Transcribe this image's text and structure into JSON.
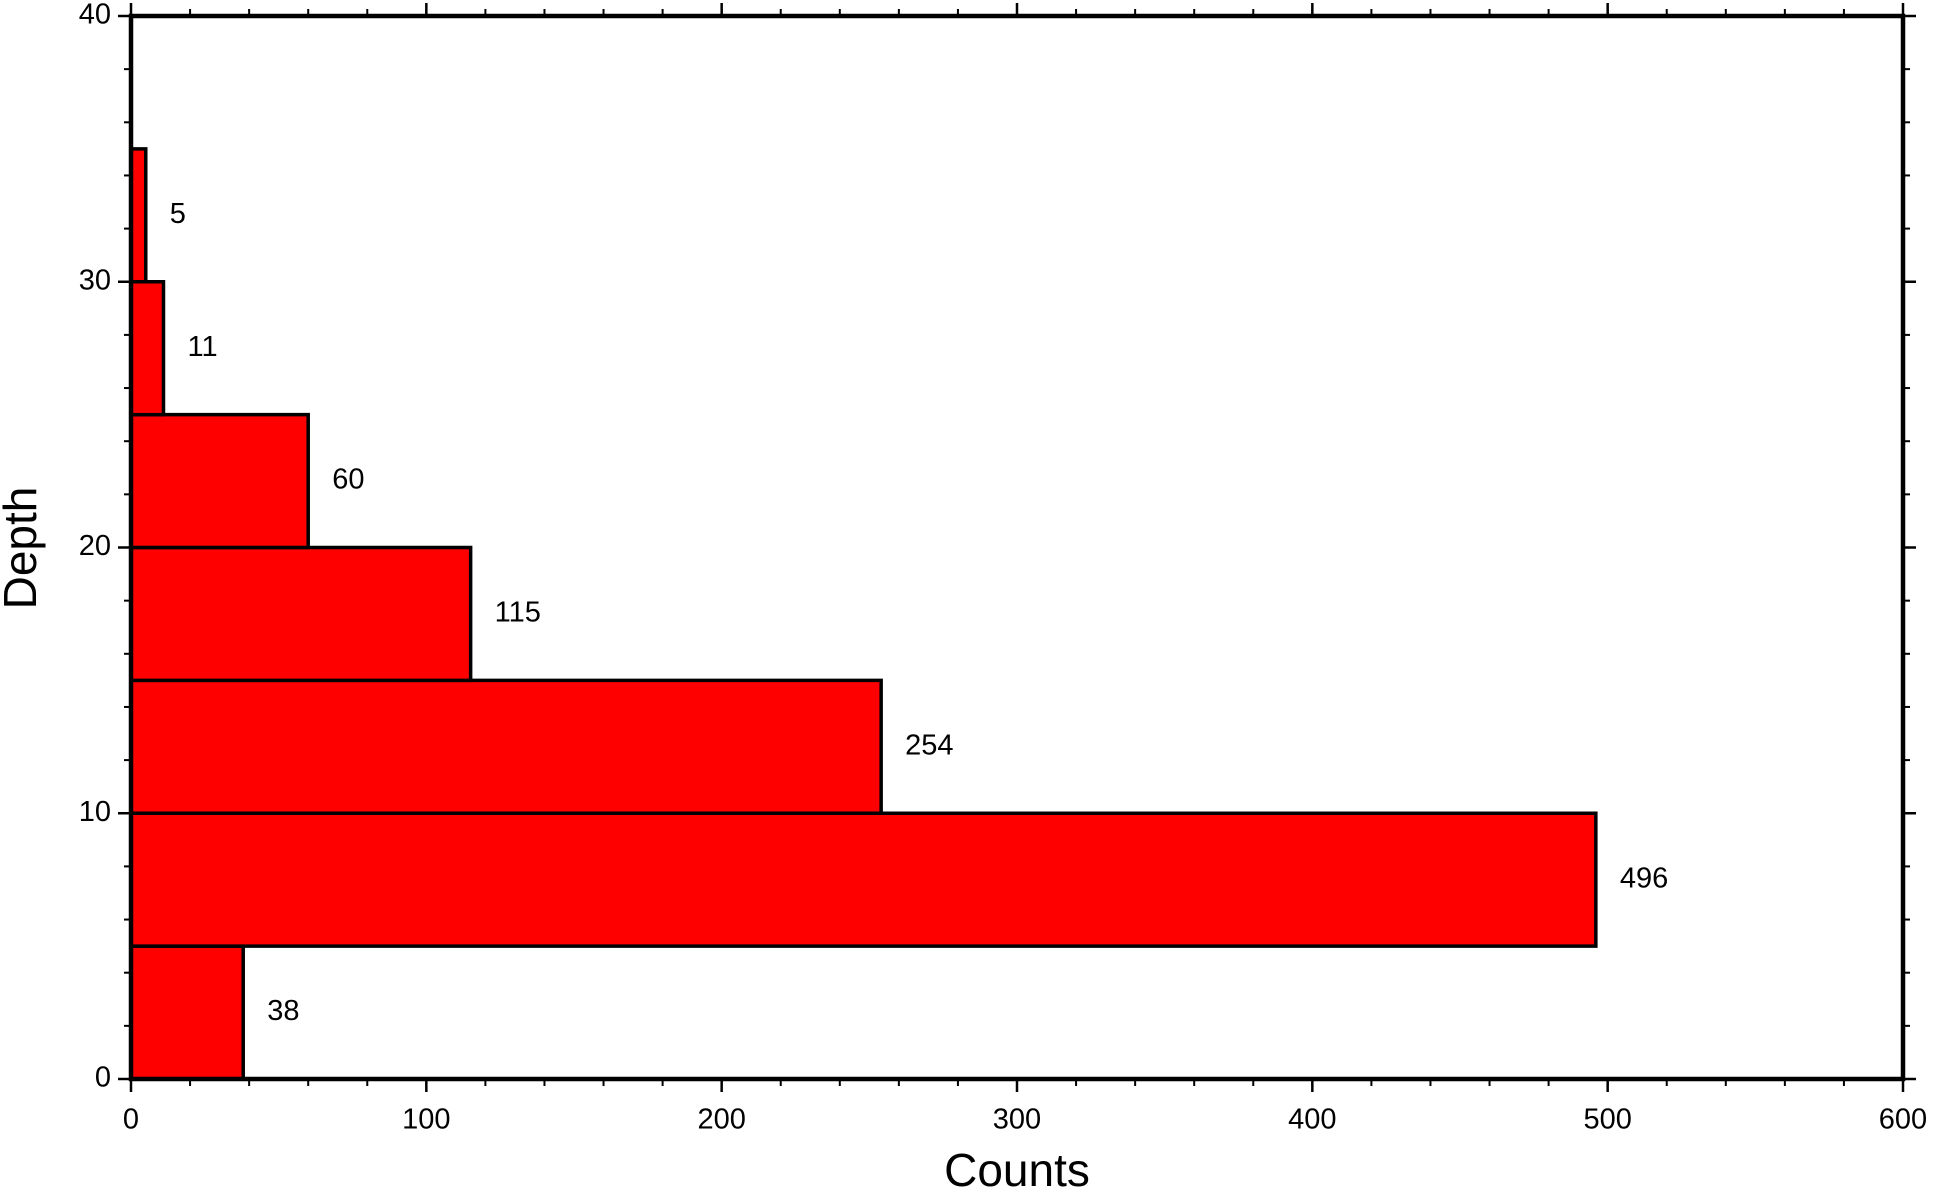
{
  "chart_data": {
    "type": "histogram",
    "orientation": "horizontal",
    "bins": [
      0,
      5,
      10,
      15,
      20,
      25,
      30,
      35
    ],
    "values": [
      38,
      496,
      254,
      115,
      60,
      11,
      5
    ],
    "color": "#ff0000",
    "xlabel": "Counts",
    "ylabel": "Depth",
    "xlim": [
      0,
      600
    ],
    "xticks": [
      0,
      100,
      200,
      300,
      400,
      500,
      600
    ],
    "xminorstep": 20,
    "ylim": [
      0,
      40
    ],
    "yticks": [
      0,
      10,
      20,
      30,
      40
    ],
    "yminorstep": 2,
    "grid": false
  }
}
